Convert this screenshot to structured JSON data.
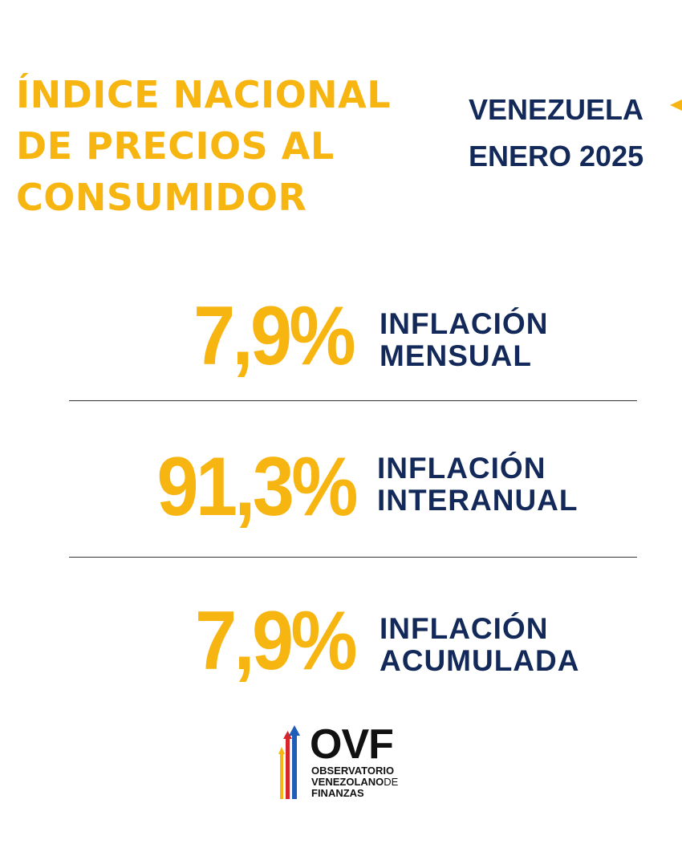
{
  "header": {
    "title_lines": [
      "ÍNDICE NACIONAL",
      "DE PRECIOS AL",
      "CONSUMIDOR"
    ],
    "country": "VENEZUELA",
    "period": "ENERO 2025"
  },
  "stats": [
    {
      "value": "7,9%",
      "label_line1": "INFLACIÓN",
      "label_line2": "MENSUAL"
    },
    {
      "value": "91,3%",
      "label_line1": "INFLACIÓN",
      "label_line2": "INTERANUAL"
    },
    {
      "value": "7,9%",
      "label_line1": "INFLACIÓN",
      "label_line2": "ACUMULADA"
    }
  ],
  "logo": {
    "wordmark": "OVF",
    "line1": "OBSERVATORIO",
    "line2_bold": "VENEZOLANO",
    "line2_light": "DE",
    "line3": "FINANZAS"
  },
  "colors": {
    "accent_yellow": "#F7B512",
    "navy": "#13295A",
    "logo_blue": "#1E5DB8",
    "logo_red": "#D7262B"
  }
}
